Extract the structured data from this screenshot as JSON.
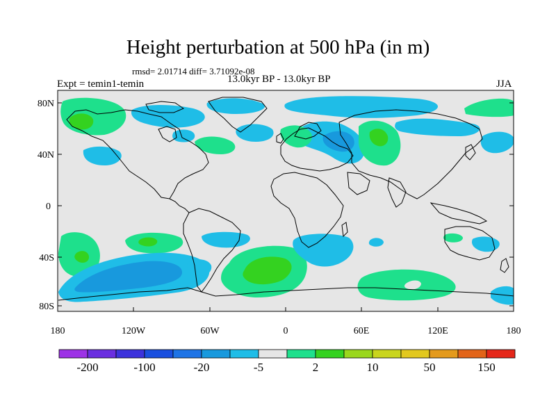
{
  "title": "Height perturbation at 500 hPa (in m)",
  "stats": "rmsd= 2.01714 diff= 3.71092e-08",
  "period": "13.0kyr BP - 13.0kyr BP",
  "experiment": "Expt = temin1-temin",
  "season": "JJA",
  "lat_ticks": [
    "80N",
    "40N",
    "0",
    "40S",
    "80S"
  ],
  "lon_ticks": [
    "180",
    "120W",
    "60W",
    "0",
    "60E",
    "120E",
    "180"
  ],
  "colorbar": {
    "colors": [
      "#9d32e6",
      "#6a2ee0",
      "#3c32dc",
      "#1a4fdf",
      "#1e74e6",
      "#1899dd",
      "#1fbde7",
      "#e6e6e6",
      "#1ee08c",
      "#34d220",
      "#9ad71c",
      "#c9d51d",
      "#e2c81f",
      "#e49a1c",
      "#e26419",
      "#e5271a"
    ],
    "labels": [
      "-200",
      "-100",
      "-20",
      "-5",
      "2",
      "10",
      "50",
      "150"
    ]
  },
  "map_colors": {
    "ocean": "#e6e6e6",
    "light_blue": "#1fbde7",
    "blue": "#1899dd",
    "mid_blue": "#1e74e6",
    "light_green": "#1ee08c",
    "green": "#34d220",
    "coast": "#000000"
  }
}
